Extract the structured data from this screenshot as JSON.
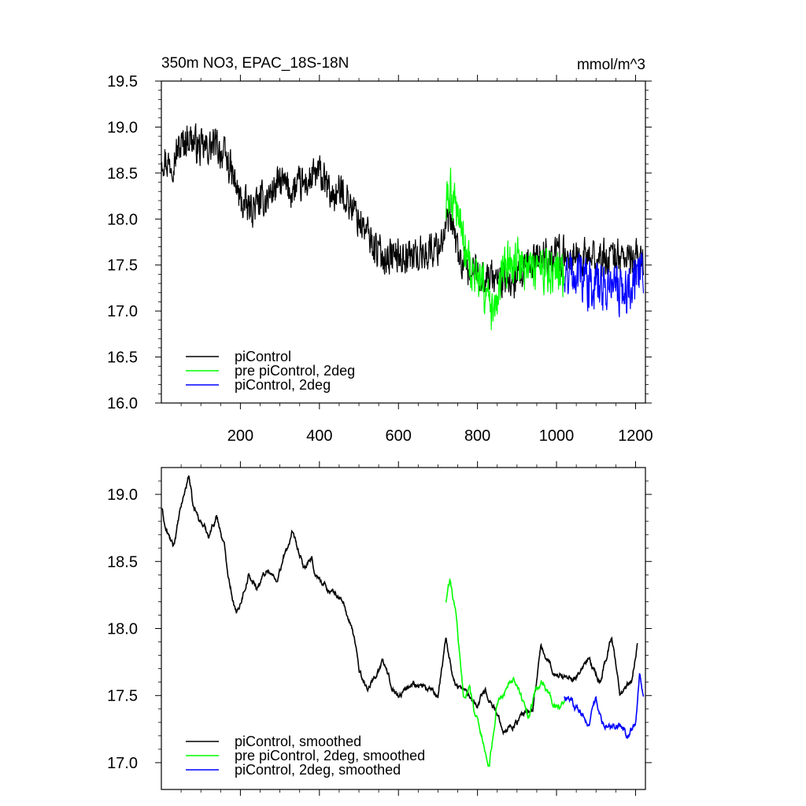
{
  "chart_data": [
    {
      "type": "line",
      "title": "350m NO3, EPAC_18S-18N",
      "units": "mmol/m^3",
      "xlim": [
        0,
        1225
      ],
      "ylim": [
        16.0,
        19.5
      ],
      "xticks": [
        200,
        400,
        600,
        800,
        1000,
        1200
      ],
      "xtick_labels": [
        "200",
        "400",
        "600",
        "800",
        "1000",
        "1200"
      ],
      "yticks": [
        16.0,
        16.5,
        17.0,
        17.5,
        18.0,
        18.5,
        19.0,
        19.5
      ],
      "ytick_labels": [
        "16.0",
        "16.5",
        "17.0",
        "17.5",
        "18.0",
        "18.5",
        "19.0",
        "19.5"
      ],
      "legend_position": "bottom-left",
      "grid": false,
      "series": [
        {
          "name": "piControl",
          "color": "#000000",
          "noise": 0.22,
          "x": [
            1,
            20,
            50,
            70,
            100,
            140,
            170,
            200,
            220,
            260,
            300,
            330,
            370,
            400,
            430,
            460,
            500,
            540,
            560,
            600,
            650,
            700,
            730,
            760,
            800,
            850,
            900,
            950,
            1000,
            1050,
            1100,
            1150,
            1200,
            1220
          ],
          "y": [
            18.7,
            18.6,
            18.8,
            18.9,
            18.75,
            18.8,
            18.6,
            18.2,
            18.1,
            18.2,
            18.4,
            18.3,
            18.4,
            18.5,
            18.25,
            18.3,
            18.0,
            17.7,
            17.6,
            17.6,
            17.6,
            17.7,
            18.0,
            17.5,
            17.4,
            17.35,
            17.3,
            17.6,
            17.6,
            17.6,
            17.55,
            17.6,
            17.55,
            17.6
          ]
        },
        {
          "name": "pre piControl, 2deg",
          "color": "#00ff00",
          "noise": 0.3,
          "x": [
            720,
            730,
            745,
            760,
            780,
            800,
            820,
            840,
            860,
            880,
            900,
            950,
            1000,
            1020
          ],
          "y": [
            18.1,
            18.3,
            18.2,
            17.9,
            17.5,
            17.3,
            17.2,
            16.9,
            17.3,
            17.5,
            17.5,
            17.45,
            17.45,
            17.4
          ]
        },
        {
          "name": "piControl, 2deg",
          "color": "#0000ff",
          "noise": 0.3,
          "x": [
            1020,
            1050,
            1080,
            1110,
            1140,
            1170,
            1200,
            1220
          ],
          "y": [
            17.4,
            17.45,
            17.3,
            17.25,
            17.3,
            17.2,
            17.35,
            17.5
          ]
        }
      ]
    },
    {
      "type": "line",
      "title": "",
      "units": "",
      "xlim": [
        0,
        1225
      ],
      "ylim": [
        16.8,
        19.2
      ],
      "xticks": [
        200,
        400,
        600,
        800,
        1000,
        1200
      ],
      "xtick_labels": [],
      "yticks": [
        17.0,
        17.5,
        18.0,
        18.5,
        19.0
      ],
      "ytick_labels": [
        "17.0",
        "17.5",
        "18.0",
        "18.5",
        "19.0"
      ],
      "legend_position": "bottom-left",
      "grid": false,
      "series": [
        {
          "name": "piControl, smoothed",
          "color": "#000000",
          "noise": 0.045,
          "x": [
            1,
            10,
            30,
            50,
            70,
            80,
            100,
            120,
            140,
            160,
            170,
            190,
            200,
            220,
            240,
            270,
            290,
            330,
            360,
            380,
            390,
            420,
            460,
            490,
            500,
            520,
            560,
            580,
            600,
            640,
            700,
            720,
            740,
            800,
            820,
            850,
            870,
            900,
            940,
            960,
            1000,
            1050,
            1080,
            1110,
            1140,
            1160,
            1190,
            1205
          ],
          "y": [
            18.9,
            18.75,
            18.6,
            18.9,
            19.15,
            18.9,
            18.8,
            18.7,
            18.85,
            18.6,
            18.4,
            18.1,
            18.2,
            18.4,
            18.3,
            18.45,
            18.35,
            18.7,
            18.45,
            18.5,
            18.4,
            18.3,
            18.2,
            17.9,
            17.7,
            17.55,
            17.75,
            17.6,
            17.5,
            17.6,
            17.5,
            17.95,
            17.6,
            17.45,
            17.55,
            17.35,
            17.25,
            17.3,
            17.4,
            17.85,
            17.65,
            17.65,
            17.75,
            17.6,
            17.95,
            17.5,
            17.6,
            17.9
          ]
        },
        {
          "name": "pre piControl, 2deg, smoothed",
          "color": "#00ff00",
          "noise": 0.05,
          "x": [
            720,
            730,
            745,
            755,
            765,
            780,
            790,
            800,
            810,
            820,
            830,
            840,
            850,
            870,
            890,
            910,
            930,
            950,
            970,
            990,
            1010,
            1020
          ],
          "y": [
            18.2,
            18.35,
            18.1,
            17.8,
            17.5,
            17.55,
            17.4,
            17.3,
            17.2,
            17.05,
            17.0,
            17.2,
            17.45,
            17.55,
            17.6,
            17.5,
            17.35,
            17.55,
            17.6,
            17.45,
            17.4,
            17.45
          ]
        },
        {
          "name": "piControl, 2deg, smoothed",
          "color": "#0000ff",
          "noise": 0.05,
          "x": [
            1020,
            1040,
            1060,
            1080,
            1100,
            1120,
            1140,
            1160,
            1180,
            1200,
            1210,
            1220
          ],
          "y": [
            17.5,
            17.45,
            17.4,
            17.3,
            17.45,
            17.3,
            17.25,
            17.3,
            17.2,
            17.3,
            17.65,
            17.5
          ]
        }
      ]
    }
  ]
}
